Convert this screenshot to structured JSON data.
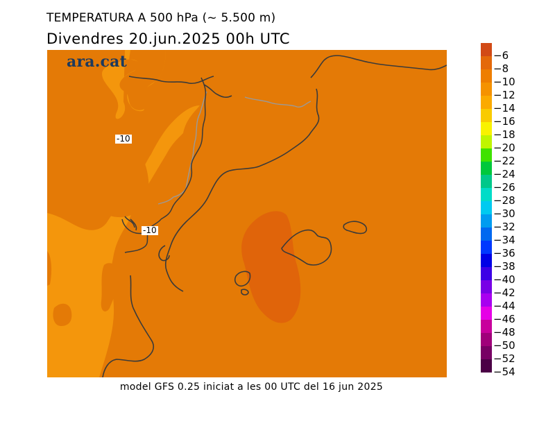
{
  "title": "TEMPERATURA A 500 hPa (~ 5.500 m)",
  "subtitle": "Divendres  20.jun.2025 00h UTC",
  "brand": "ara.cat",
  "footer": "model GFS 0.25 iniciat a les 00 UTC del 16 jun 2025",
  "contour_labels": [
    "-10",
    "-10"
  ],
  "legend": {
    "colors": [
      "#d24a16",
      "#e4690a",
      "#ee7e00",
      "#f59200",
      "#fbaa00",
      "#f9cb00",
      "#f9f200",
      "#bff500",
      "#3fe200",
      "#00c83c",
      "#00c88a",
      "#00dcc8",
      "#00caf0",
      "#009cf0",
      "#0068f0",
      "#0038ff",
      "#0000e6",
      "#3c00e6",
      "#7800e6",
      "#a800f0",
      "#e600e6",
      "#c8009c",
      "#a0007a",
      "#780064",
      "#4b0046"
    ],
    "labels": [
      "-6",
      "-8",
      "-10",
      "-12",
      "-14",
      "-16",
      "-18",
      "-20",
      "-22",
      "-24",
      "-26",
      "-28",
      "-30",
      "-32",
      "-34",
      "-36",
      "-38",
      "-40",
      "-42",
      "-44",
      "-46",
      "-48",
      "-50",
      "-52",
      "-54"
    ]
  },
  "map_colors": {
    "temp_-10_to_-8": "#e47a06",
    "temp_-12_to_-10": "#f4960c",
    "temp_-8_to_-6": "#e0640a",
    "coast": "#3a3a3a",
    "border": "#9a9a9a"
  }
}
